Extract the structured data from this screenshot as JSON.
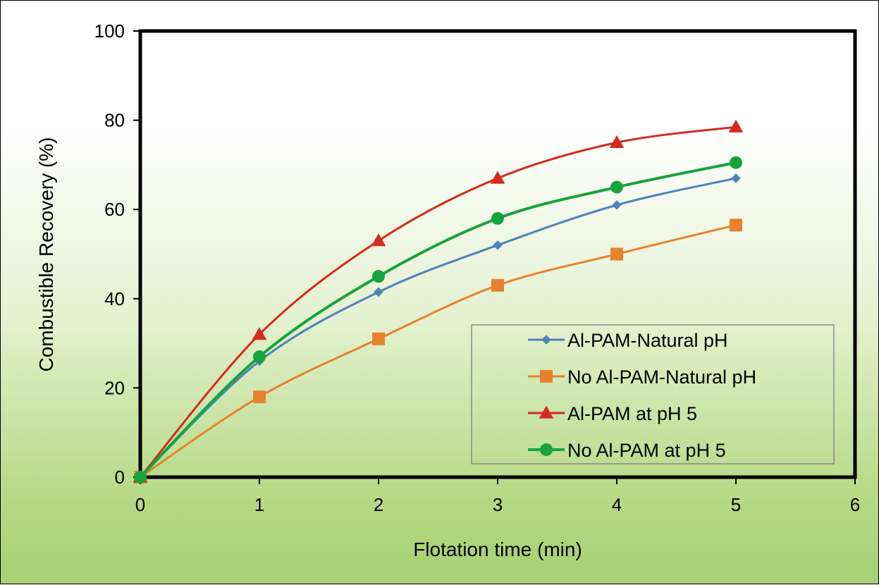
{
  "chart_data": {
    "type": "line",
    "title": "",
    "xlabel": "Flotation time (min)",
    "ylabel": "Combustible Recovery (%)",
    "xlim": [
      0,
      6
    ],
    "ylim": [
      0,
      100
    ],
    "x_ticks": [
      "0",
      "1",
      "2",
      "3",
      "4",
      "5",
      "6"
    ],
    "y_ticks": [
      "0",
      "20",
      "40",
      "60",
      "80",
      "100"
    ],
    "legend_position": "bottom-right",
    "grid": false,
    "x": [
      0,
      1,
      2,
      3,
      4,
      5
    ],
    "series": [
      {
        "name": "Al-PAM-Natural pH",
        "color": "#4f81bd",
        "marker": "diamond",
        "values": [
          0,
          26,
          41.5,
          52,
          61,
          67
        ]
      },
      {
        "name": "No Al-PAM-Natural pH",
        "color": "#e6822f",
        "marker": "square",
        "values": [
          0,
          18,
          31,
          43,
          50,
          56.5
        ]
      },
      {
        "name": "Al-PAM at pH 5",
        "color": "#d42b1e",
        "marker": "triangle",
        "values": [
          0,
          32,
          53,
          67,
          75,
          78.5
        ]
      },
      {
        "name": "No Al-PAM at pH 5",
        "color": "#17a33e",
        "marker": "circle",
        "values": [
          0,
          27,
          45,
          58,
          65,
          70.5
        ]
      }
    ]
  }
}
